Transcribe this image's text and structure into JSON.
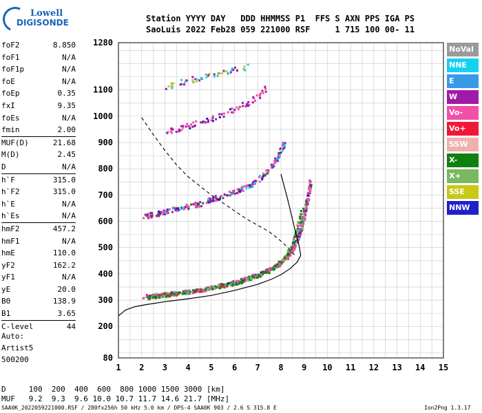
{
  "logo": {
    "line1": "Lowell",
    "line2": "DIGISONDE"
  },
  "header": {
    "row1": "Station YYYY DAY   DDD HHMMSS P1  FFS S AXN PPS IGA PS",
    "row2": "SaoLuis 2022 Feb28 059 221000 RSF     1 715 100 00- 11"
  },
  "params": [
    {
      "label": "foF2",
      "value": "8.850"
    },
    {
      "label": "foF1",
      "value": "N/A"
    },
    {
      "label": "foF1p",
      "value": "N/A"
    },
    {
      "label": "foE",
      "value": "N/A"
    },
    {
      "label": "foEp",
      "value": "0.35"
    },
    {
      "label": "fxI",
      "value": "9.35"
    },
    {
      "label": "foEs",
      "value": "N/A"
    },
    {
      "label": "fmin",
      "value": "2.00"
    },
    {
      "label": "MUF(D)",
      "value": "21.68",
      "sep": true
    },
    {
      "label": "M(D)",
      "value": "2.45"
    },
    {
      "label": "D",
      "value": "N/A"
    },
    {
      "label": "h`F",
      "value": "315.0",
      "sep": true
    },
    {
      "label": "h`F2",
      "value": "315.0"
    },
    {
      "label": "h`E",
      "value": "N/A"
    },
    {
      "label": "h`Es",
      "value": "N/A"
    },
    {
      "label": "hmF2",
      "value": "457.2",
      "sep": true
    },
    {
      "label": "hmF1",
      "value": "N/A"
    },
    {
      "label": "hmE",
      "value": "110.0"
    },
    {
      "label": "yF2",
      "value": "162.2"
    },
    {
      "label": "yF1",
      "value": "N/A"
    },
    {
      "label": "yE",
      "value": "20.0"
    },
    {
      "label": "B0",
      "value": "138.9"
    },
    {
      "label": "B1",
      "value": "3.65"
    },
    {
      "label": "C-level",
      "value": "44",
      "sep": true
    }
  ],
  "autoscale": {
    "line1": "Auto:",
    "line2": "Artist5",
    "line3": "500200"
  },
  "legend": [
    {
      "label": "NoVal",
      "color": "#9a9a9a"
    },
    {
      "label": "NNE",
      "color": "#16d0f0"
    },
    {
      "label": "E",
      "color": "#3a9ae8"
    },
    {
      "label": "W",
      "color": "#a01aa8"
    },
    {
      "label": "Vo-",
      "color": "#f050a8"
    },
    {
      "label": "Vo+",
      "color": "#f01838"
    },
    {
      "label": "SSW",
      "color": "#f0b0b0"
    },
    {
      "label": "X-",
      "color": "#108010"
    },
    {
      "label": "X+",
      "color": "#78b860"
    },
    {
      "label": "SSE",
      "color": "#c8c818"
    },
    {
      "label": "NNW",
      "color": "#2020c8"
    }
  ],
  "bottom": {
    "d_row": "D     100  200  400  600  800 1000 1500 3000 [km]",
    "muf_row": "MUF   9.2  9.3  9.6 10.0 10.7 11.7 14.6 21.7 [MHz]"
  },
  "footer": {
    "left": "SAA0K_2022059221000.RSF / 280fx256h 50 kHz 5.0 km / DPS-4 SAA0K 903 / 2.6 S 315.8 E",
    "right": "Ion2Png 1.3.17"
  },
  "chart_data": {
    "type": "scatter",
    "xlim": [
      1,
      15
    ],
    "ylim": [
      80,
      1280
    ],
    "xticks": [
      1,
      2,
      3,
      4,
      5,
      6,
      7,
      8,
      9,
      10,
      11,
      12,
      13,
      14,
      15
    ],
    "yticks": [
      80,
      200,
      300,
      400,
      500,
      600,
      700,
      800,
      900,
      1000,
      1100,
      1280
    ],
    "grid": true,
    "legend_position": "right",
    "profile_curve": {
      "x": [
        1.0,
        1.3,
        1.7,
        2.2,
        3.0,
        4.0,
        5.0,
        6.0,
        7.0,
        7.6,
        8.0,
        8.4,
        8.7,
        8.85,
        8.8,
        8.6,
        8.3,
        8.0
      ],
      "y": [
        240,
        262,
        275,
        283,
        294,
        305,
        318,
        337,
        360,
        380,
        397,
        420,
        445,
        470,
        500,
        570,
        680,
        780
      ]
    },
    "muf_dash_curve": {
      "x": [
        2.0,
        2.5,
        3.0,
        3.5,
        4.0,
        4.5,
        5.0,
        5.5,
        6.0,
        6.5,
        7.0,
        7.5,
        8.0,
        8.3,
        8.6
      ],
      "y": [
        995,
        930,
        870,
        815,
        770,
        735,
        700,
        670,
        640,
        610,
        585,
        560,
        525,
        500,
        470
      ]
    },
    "trace_F2_ordinary": {
      "x": [
        2.0,
        2.5,
        3.0,
        3.5,
        4.0,
        4.5,
        5.0,
        5.5,
        6.0,
        6.5,
        7.0,
        7.5,
        8.0,
        8.3,
        8.5,
        8.7,
        8.85,
        8.95,
        9.05,
        9.15,
        9.25
      ],
      "y": [
        315,
        320,
        325,
        330,
        335,
        340,
        350,
        360,
        370,
        385,
        400,
        420,
        450,
        475,
        500,
        540,
        580,
        620,
        660,
        700,
        760
      ]
    },
    "trace_F2_extraordinary": {
      "x": [
        2.2,
        2.8,
        3.4,
        4.0,
        4.6,
        5.2,
        5.8,
        6.4,
        7.0,
        7.5,
        7.9,
        8.2,
        8.5,
        8.7,
        8.9
      ],
      "y": [
        310,
        318,
        325,
        333,
        342,
        352,
        362,
        376,
        395,
        415,
        440,
        470,
        520,
        580,
        650
      ]
    },
    "trace_multihop_2F": {
      "x": [
        2.0,
        2.5,
        3.0,
        3.5,
        4.0,
        4.5,
        5.0,
        5.5,
        6.0,
        6.5,
        7.0,
        7.5,
        7.8,
        8.0,
        8.1
      ],
      "y": [
        620,
        630,
        640,
        650,
        660,
        670,
        685,
        700,
        715,
        735,
        760,
        800,
        840,
        880,
        900
      ]
    },
    "trace_multihop_3F": {
      "x": [
        3.0,
        3.5,
        4.0,
        4.5,
        5.0,
        5.5,
        6.0,
        6.5,
        7.0,
        7.3
      ],
      "y": [
        945,
        955,
        965,
        980,
        995,
        1010,
        1030,
        1050,
        1080,
        1110
      ]
    },
    "trace_multihop_4F": {
      "x": [
        3.0,
        3.5,
        4.0,
        4.5,
        5.0,
        5.5,
        6.0,
        6.5
      ],
      "y": [
        1110,
        1125,
        1140,
        1150,
        1160,
        1170,
        1180,
        1190
      ]
    }
  }
}
